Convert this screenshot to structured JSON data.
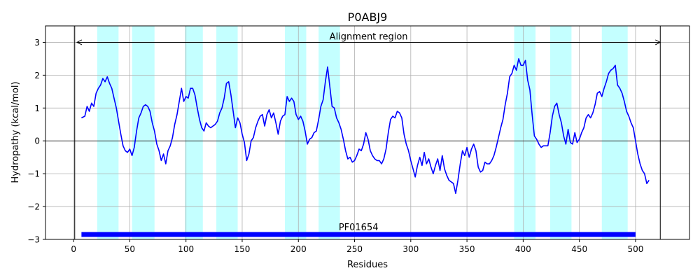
{
  "chart_data": {
    "type": "line",
    "title": "P0ABJ9",
    "xlabel": "Residues",
    "ylabel": "Hydropathy (kcal/mol)",
    "xlim": [
      -25,
      548
    ],
    "ylim": [
      -3,
      3.5
    ],
    "xticks": [
      0,
      50,
      100,
      150,
      200,
      250,
      300,
      350,
      400,
      450,
      500
    ],
    "yticks": [
      -3,
      -2,
      -1,
      0,
      1,
      2,
      3
    ],
    "ytick_labels": [
      "−3",
      "−2",
      "−1",
      "0",
      "1",
      "2",
      "3"
    ],
    "grid": true,
    "colors": {
      "line": "#0000ff",
      "region": "#c4ffff",
      "domain": "#0000ff",
      "axes": "#000000",
      "grid": "#b0b0b0"
    },
    "highlighted_regions": [
      [
        21,
        40
      ],
      [
        52,
        72
      ],
      [
        99,
        115
      ],
      [
        127,
        146
      ],
      [
        188,
        207
      ],
      [
        218,
        237
      ],
      [
        392,
        411
      ],
      [
        424,
        443
      ],
      [
        470,
        493
      ]
    ],
    "alignment_region": {
      "label": "Alignment region",
      "start": 3,
      "end": 522,
      "y": 3
    },
    "domain_bar": {
      "label": "PF01654",
      "start": 7,
      "end": 500,
      "y": -2.85
    },
    "vertical_lines": [
      1,
      522
    ],
    "series": [
      {
        "values": [
          [
            7,
            0.7
          ],
          [
            10,
            0.75
          ],
          [
            12,
            1.05
          ],
          [
            14,
            0.9
          ],
          [
            16,
            1.15
          ],
          [
            18,
            1.05
          ],
          [
            20,
            1.45
          ],
          [
            22,
            1.6
          ],
          [
            24,
            1.7
          ],
          [
            26,
            1.9
          ],
          [
            28,
            1.8
          ],
          [
            30,
            1.95
          ],
          [
            32,
            1.75
          ],
          [
            34,
            1.6
          ],
          [
            36,
            1.3
          ],
          [
            38,
            1.0
          ],
          [
            40,
            0.6
          ],
          [
            42,
            0.2
          ],
          [
            44,
            -0.15
          ],
          [
            46,
            -0.3
          ],
          [
            48,
            -0.35
          ],
          [
            50,
            -0.25
          ],
          [
            52,
            -0.45
          ],
          [
            54,
            -0.2
          ],
          [
            56,
            0.3
          ],
          [
            58,
            0.7
          ],
          [
            60,
            0.85
          ],
          [
            62,
            1.05
          ],
          [
            64,
            1.1
          ],
          [
            66,
            1.05
          ],
          [
            68,
            0.9
          ],
          [
            70,
            0.55
          ],
          [
            72,
            0.3
          ],
          [
            74,
            -0.1
          ],
          [
            76,
            -0.3
          ],
          [
            78,
            -0.6
          ],
          [
            80,
            -0.4
          ],
          [
            82,
            -0.7
          ],
          [
            84,
            -0.3
          ],
          [
            86,
            -0.15
          ],
          [
            88,
            0.1
          ],
          [
            90,
            0.5
          ],
          [
            92,
            0.8
          ],
          [
            94,
            1.2
          ],
          [
            96,
            1.6
          ],
          [
            98,
            1.2
          ],
          [
            100,
            1.35
          ],
          [
            102,
            1.3
          ],
          [
            104,
            1.6
          ],
          [
            106,
            1.6
          ],
          [
            108,
            1.4
          ],
          [
            110,
            1.0
          ],
          [
            112,
            0.65
          ],
          [
            114,
            0.4
          ],
          [
            116,
            0.3
          ],
          [
            118,
            0.55
          ],
          [
            120,
            0.45
          ],
          [
            122,
            0.4
          ],
          [
            124,
            0.45
          ],
          [
            126,
            0.5
          ],
          [
            128,
            0.6
          ],
          [
            130,
            0.85
          ],
          [
            132,
            1.0
          ],
          [
            134,
            1.3
          ],
          [
            136,
            1.75
          ],
          [
            138,
            1.8
          ],
          [
            140,
            1.4
          ],
          [
            142,
            0.9
          ],
          [
            144,
            0.4
          ],
          [
            146,
            0.7
          ],
          [
            148,
            0.55
          ],
          [
            150,
            0.2
          ],
          [
            152,
            -0.05
          ],
          [
            154,
            -0.6
          ],
          [
            156,
            -0.4
          ],
          [
            158,
            0.0
          ],
          [
            160,
            0.1
          ],
          [
            162,
            0.4
          ],
          [
            164,
            0.6
          ],
          [
            166,
            0.75
          ],
          [
            168,
            0.8
          ],
          [
            170,
            0.45
          ],
          [
            172,
            0.8
          ],
          [
            174,
            0.95
          ],
          [
            176,
            0.7
          ],
          [
            178,
            0.85
          ],
          [
            180,
            0.55
          ],
          [
            182,
            0.2
          ],
          [
            184,
            0.6
          ],
          [
            186,
            0.75
          ],
          [
            188,
            0.8
          ],
          [
            190,
            1.35
          ],
          [
            192,
            1.2
          ],
          [
            194,
            1.3
          ],
          [
            196,
            1.2
          ],
          [
            198,
            0.8
          ],
          [
            200,
            0.65
          ],
          [
            202,
            0.75
          ],
          [
            204,
            0.6
          ],
          [
            206,
            0.3
          ],
          [
            208,
            -0.1
          ],
          [
            210,
            0.05
          ],
          [
            212,
            0.1
          ],
          [
            214,
            0.25
          ],
          [
            216,
            0.3
          ],
          [
            218,
            0.65
          ],
          [
            220,
            1.05
          ],
          [
            222,
            1.25
          ],
          [
            224,
            1.8
          ],
          [
            226,
            2.25
          ],
          [
            228,
            1.65
          ],
          [
            230,
            1.05
          ],
          [
            232,
            1.0
          ],
          [
            234,
            0.7
          ],
          [
            236,
            0.55
          ],
          [
            238,
            0.35
          ],
          [
            240,
            0.05
          ],
          [
            242,
            -0.3
          ],
          [
            244,
            -0.55
          ],
          [
            246,
            -0.5
          ],
          [
            248,
            -0.65
          ],
          [
            250,
            -0.6
          ],
          [
            252,
            -0.45
          ],
          [
            254,
            -0.25
          ],
          [
            256,
            -0.3
          ],
          [
            258,
            -0.1
          ],
          [
            260,
            0.25
          ],
          [
            262,
            0.05
          ],
          [
            264,
            -0.3
          ],
          [
            266,
            -0.45
          ],
          [
            268,
            -0.55
          ],
          [
            270,
            -0.6
          ],
          [
            272,
            -0.6
          ],
          [
            274,
            -0.7
          ],
          [
            276,
            -0.55
          ],
          [
            278,
            -0.25
          ],
          [
            280,
            0.25
          ],
          [
            282,
            0.65
          ],
          [
            284,
            0.75
          ],
          [
            286,
            0.7
          ],
          [
            288,
            0.9
          ],
          [
            290,
            0.85
          ],
          [
            292,
            0.7
          ],
          [
            294,
            0.2
          ],
          [
            296,
            -0.1
          ],
          [
            298,
            -0.3
          ],
          [
            300,
            -0.6
          ],
          [
            302,
            -0.85
          ],
          [
            304,
            -1.1
          ],
          [
            306,
            -0.75
          ],
          [
            308,
            -0.5
          ],
          [
            310,
            -0.75
          ],
          [
            312,
            -0.35
          ],
          [
            314,
            -0.7
          ],
          [
            316,
            -0.55
          ],
          [
            318,
            -0.8
          ],
          [
            320,
            -1.0
          ],
          [
            322,
            -0.75
          ],
          [
            324,
            -0.55
          ],
          [
            326,
            -0.9
          ],
          [
            328,
            -0.45
          ],
          [
            330,
            -0.85
          ],
          [
            332,
            -1.05
          ],
          [
            334,
            -1.2
          ],
          [
            336,
            -1.25
          ],
          [
            338,
            -1.3
          ],
          [
            340,
            -1.6
          ],
          [
            342,
            -1.2
          ],
          [
            344,
            -0.7
          ],
          [
            346,
            -0.3
          ],
          [
            348,
            -0.45
          ],
          [
            350,
            -0.2
          ],
          [
            352,
            -0.5
          ],
          [
            354,
            -0.25
          ],
          [
            356,
            -0.1
          ],
          [
            358,
            -0.3
          ],
          [
            360,
            -0.8
          ],
          [
            362,
            -0.95
          ],
          [
            364,
            -0.9
          ],
          [
            366,
            -0.65
          ],
          [
            368,
            -0.7
          ],
          [
            370,
            -0.7
          ],
          [
            372,
            -0.6
          ],
          [
            374,
            -0.45
          ],
          [
            376,
            -0.2
          ],
          [
            378,
            0.1
          ],
          [
            380,
            0.4
          ],
          [
            382,
            0.65
          ],
          [
            384,
            1.1
          ],
          [
            386,
            1.45
          ],
          [
            388,
            1.95
          ],
          [
            390,
            2.05
          ],
          [
            392,
            2.3
          ],
          [
            394,
            2.15
          ],
          [
            396,
            2.5
          ],
          [
            398,
            2.3
          ],
          [
            400,
            2.3
          ],
          [
            402,
            2.45
          ],
          [
            404,
            1.85
          ],
          [
            406,
            1.55
          ],
          [
            408,
            0.8
          ],
          [
            410,
            0.15
          ],
          [
            412,
            0.05
          ],
          [
            414,
            -0.1
          ],
          [
            416,
            -0.2
          ],
          [
            418,
            -0.15
          ],
          [
            420,
            -0.15
          ],
          [
            422,
            -0.15
          ],
          [
            424,
            0.25
          ],
          [
            426,
            0.75
          ],
          [
            428,
            1.05
          ],
          [
            430,
            1.15
          ],
          [
            432,
            0.8
          ],
          [
            434,
            0.55
          ],
          [
            436,
            0.15
          ],
          [
            438,
            -0.1
          ],
          [
            440,
            0.35
          ],
          [
            442,
            -0.05
          ],
          [
            444,
            -0.1
          ],
          [
            446,
            0.25
          ],
          [
            448,
            -0.05
          ],
          [
            450,
            0.05
          ],
          [
            452,
            0.25
          ],
          [
            454,
            0.4
          ],
          [
            456,
            0.7
          ],
          [
            458,
            0.8
          ],
          [
            460,
            0.7
          ],
          [
            462,
            0.85
          ],
          [
            464,
            1.1
          ],
          [
            466,
            1.45
          ],
          [
            468,
            1.5
          ],
          [
            470,
            1.35
          ],
          [
            472,
            1.6
          ],
          [
            474,
            1.8
          ],
          [
            476,
            2.05
          ],
          [
            478,
            2.15
          ],
          [
            480,
            2.2
          ],
          [
            482,
            2.3
          ],
          [
            484,
            1.7
          ],
          [
            486,
            1.6
          ],
          [
            488,
            1.45
          ],
          [
            490,
            1.2
          ],
          [
            492,
            0.9
          ],
          [
            494,
            0.75
          ],
          [
            496,
            0.55
          ],
          [
            498,
            0.4
          ],
          [
            500,
            0.0
          ],
          [
            502,
            -0.4
          ],
          [
            504,
            -0.7
          ],
          [
            506,
            -0.9
          ],
          [
            508,
            -1.0
          ],
          [
            510,
            -1.3
          ],
          [
            512,
            -1.2
          ]
        ]
      }
    ]
  }
}
